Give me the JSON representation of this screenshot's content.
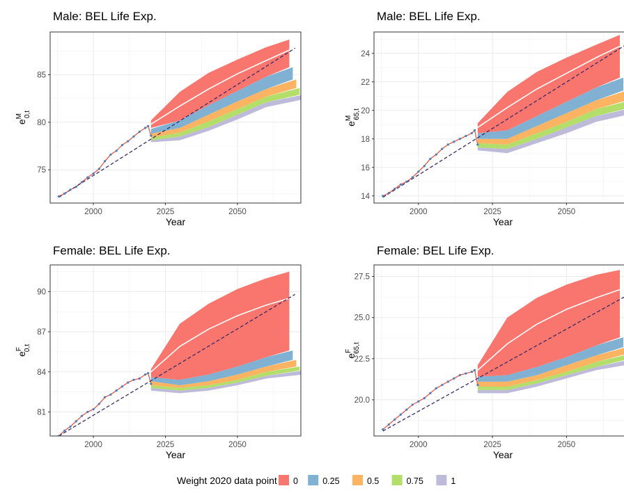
{
  "colors": {
    "w0": "#F8766D",
    "w025": "#80B1D3",
    "w05": "#FDB462",
    "w075": "#B3DE69",
    "w1": "#BEBADA",
    "observed_dots": "#4A7FB5",
    "observed_line": "#E8564B",
    "dashed": "#3B2A66",
    "median": "#FFFFFF"
  },
  "legend": {
    "title": "Weight 2020 data point",
    "items": [
      {
        "label": "0",
        "color_key": "w0"
      },
      {
        "label": "0.25",
        "color_key": "w025"
      },
      {
        "label": "0.5",
        "color_key": "w05"
      },
      {
        "label": "0.75",
        "color_key": "w075"
      },
      {
        "label": "1",
        "color_key": "w1"
      }
    ]
  },
  "chart_data": [
    {
      "type": "area",
      "title": "Male: BEL Life Exp.",
      "xlabel": "Year",
      "ylabel_base": "e",
      "ylabel_sup": "M",
      "ylabel_sub": "0,t",
      "xlim": [
        1985,
        2072
      ],
      "ylim": [
        71.5,
        89.5
      ],
      "xticks": [
        2000,
        2025,
        2050
      ],
      "yticks": [
        75,
        80,
        85
      ],
      "observed": {
        "x": [
          1988,
          1990,
          1992,
          1994,
          1996,
          1998,
          2000,
          2002,
          2004,
          2006,
          2008,
          2010,
          2012,
          2014,
          2016,
          2018,
          2019,
          2020
        ],
        "y": [
          72.2,
          72.5,
          72.9,
          73.2,
          73.7,
          74.2,
          74.6,
          75.1,
          75.9,
          76.6,
          77.0,
          77.6,
          78.0,
          78.5,
          79.0,
          79.4,
          79.6,
          78.6
        ]
      },
      "dashed": {
        "x": [
          1988,
          2070
        ],
        "y": [
          72.1,
          87.8
        ]
      },
      "median": {
        "x": [
          2020,
          2030,
          2040,
          2050,
          2060,
          2068
        ],
        "y": [
          79.8,
          81.7,
          83.5,
          85.1,
          86.5,
          87.6
        ]
      },
      "fan_years": [
        2020,
        2030,
        2040,
        2050,
        2060,
        2068
      ],
      "fans": [
        {
          "weight": "0",
          "upper": [
            80.2,
            83.2,
            85.2,
            86.6,
            87.9,
            88.7
          ],
          "lower": [
            79.4,
            80.2,
            81.8,
            83.3,
            84.8,
            85.8
          ]
        },
        {
          "weight": "0.25",
          "upper": [
            79.3,
            80.2,
            81.8,
            83.3,
            84.8,
            85.8
          ],
          "lower": [
            78.8,
            79.4,
            80.8,
            82.2,
            83.5,
            84.5
          ]
        },
        {
          "weight": "0.5",
          "upper": [
            78.8,
            79.4,
            80.8,
            82.2,
            83.5,
            84.5
          ],
          "lower": [
            78.4,
            78.9,
            80.1,
            81.4,
            82.7,
            83.6
          ]
        },
        {
          "weight": "0.75",
          "upper": [
            78.4,
            78.9,
            80.1,
            81.4,
            82.7,
            83.6
          ],
          "lower": [
            78.1,
            78.5,
            79.5,
            80.8,
            82.1,
            82.9
          ]
        },
        {
          "weight": "1",
          "upper": [
            78.1,
            78.5,
            79.5,
            80.8,
            82.1,
            82.9
          ],
          "lower": [
            77.9,
            78.1,
            79.1,
            80.3,
            81.6,
            82.4
          ]
        }
      ]
    },
    {
      "type": "area",
      "title": "Male: BEL Life Exp.",
      "xlabel": "Year",
      "ylabel_base": "e",
      "ylabel_sup": "M",
      "ylabel_sub": "65,t",
      "xlim": [
        1985,
        2072
      ],
      "ylim": [
        13.5,
        25.5
      ],
      "xticks": [
        2000,
        2025,
        2050
      ],
      "yticks": [
        14,
        16,
        18,
        20,
        22,
        24
      ],
      "observed": {
        "x": [
          1988,
          1990,
          1992,
          1994,
          1996,
          1998,
          2000,
          2002,
          2004,
          2006,
          2008,
          2010,
          2012,
          2014,
          2016,
          2018,
          2019,
          2020
        ],
        "y": [
          14.0,
          14.2,
          14.5,
          14.8,
          15.0,
          15.3,
          15.7,
          16.1,
          16.6,
          16.9,
          17.3,
          17.6,
          17.8,
          18.0,
          18.2,
          18.4,
          18.6,
          17.6
        ]
      },
      "dashed": {
        "x": [
          1988,
          2070
        ],
        "y": [
          13.9,
          24.6
        ]
      },
      "median": {
        "x": [
          2020,
          2030,
          2040,
          2050,
          2060,
          2068
        ],
        "y": [
          18.8,
          20.2,
          21.5,
          22.6,
          23.7,
          24.5
        ]
      },
      "fan_years": [
        2020,
        2030,
        2040,
        2050,
        2060,
        2068
      ],
      "fans": [
        {
          "weight": "0",
          "upper": [
            19.1,
            21.3,
            22.7,
            23.7,
            24.6,
            25.3
          ],
          "lower": [
            18.4,
            18.6,
            19.6,
            20.6,
            21.6,
            22.3
          ]
        },
        {
          "weight": "0.25",
          "upper": [
            18.4,
            18.6,
            19.6,
            20.6,
            21.6,
            22.3
          ],
          "lower": [
            18.0,
            18.0,
            18.9,
            19.8,
            20.7,
            21.4
          ]
        },
        {
          "weight": "0.5",
          "upper": [
            18.0,
            18.0,
            18.9,
            19.8,
            20.7,
            21.4
          ],
          "lower": [
            17.7,
            17.6,
            18.4,
            19.2,
            20.1,
            20.7
          ]
        },
        {
          "weight": "0.75",
          "upper": [
            17.7,
            17.6,
            18.4,
            19.2,
            20.1,
            20.7
          ],
          "lower": [
            17.4,
            17.3,
            18.0,
            18.8,
            19.6,
            20.2
          ]
        },
        {
          "weight": "1",
          "upper": [
            17.4,
            17.3,
            18.0,
            18.8,
            19.6,
            20.2
          ],
          "lower": [
            17.2,
            17.0,
            17.7,
            18.4,
            19.2,
            19.8
          ]
        }
      ]
    },
    {
      "type": "area",
      "title": "Female: BEL Life Exp.",
      "xlabel": "Year",
      "ylabel_base": "e",
      "ylabel_sup": "F",
      "ylabel_sub": "0,t",
      "xlim": [
        1985,
        2072
      ],
      "ylim": [
        79.2,
        92.0
      ],
      "xticks": [
        2000,
        2025,
        2050
      ],
      "yticks": [
        81,
        84,
        87,
        90
      ],
      "observed": {
        "x": [
          1988,
          1990,
          1992,
          1994,
          1996,
          1998,
          2000,
          2002,
          2004,
          2006,
          2008,
          2010,
          2012,
          2014,
          2016,
          2018,
          2019,
          2020
        ],
        "y": [
          79.2,
          79.6,
          79.9,
          80.3,
          80.7,
          81.0,
          81.2,
          81.6,
          82.1,
          82.3,
          82.6,
          82.9,
          83.2,
          83.4,
          83.5,
          83.8,
          83.9,
          83.1
        ]
      },
      "dashed": {
        "x": [
          1988,
          2070
        ],
        "y": [
          79.2,
          89.8
        ]
      },
      "median": {
        "x": [
          2020,
          2030,
          2040,
          2050,
          2060,
          2068
        ],
        "y": [
          84.0,
          85.9,
          87.2,
          88.2,
          89.0,
          89.5
        ]
      },
      "fan_years": [
        2020,
        2030,
        2040,
        2050,
        2060,
        2068
      ],
      "fans": [
        {
          "weight": "0",
          "upper": [
            84.2,
            87.6,
            89.1,
            90.2,
            91.0,
            91.5
          ],
          "lower": [
            83.6,
            83.4,
            83.8,
            84.4,
            85.1,
            85.6
          ]
        },
        {
          "weight": "0.25",
          "upper": [
            83.6,
            83.4,
            83.8,
            84.4,
            85.1,
            85.6
          ],
          "lower": [
            83.3,
            83.0,
            83.3,
            83.8,
            84.4,
            84.9
          ]
        },
        {
          "weight": "0.5",
          "upper": [
            83.3,
            83.0,
            83.3,
            83.8,
            84.4,
            84.9
          ],
          "lower": [
            83.0,
            82.8,
            83.0,
            83.4,
            84.0,
            84.4
          ]
        },
        {
          "weight": "0.75",
          "upper": [
            83.0,
            82.8,
            83.0,
            83.4,
            84.0,
            84.4
          ],
          "lower": [
            82.8,
            82.6,
            82.8,
            83.2,
            83.7,
            84.1
          ]
        },
        {
          "weight": "1",
          "upper": [
            82.8,
            82.6,
            82.8,
            83.2,
            83.7,
            84.1
          ],
          "lower": [
            82.6,
            82.4,
            82.6,
            83.0,
            83.5,
            83.8
          ]
        }
      ]
    },
    {
      "type": "area",
      "title": "Female: BEL Life Exp.",
      "xlabel": "Year",
      "ylabel_base": "e",
      "ylabel_sup": "F",
      "ylabel_sub": "65,t",
      "xlim": [
        1985,
        2072
      ],
      "ylim": [
        17.8,
        28.2
      ],
      "xticks": [
        2000,
        2025,
        2050
      ],
      "yticks": [
        20.0,
        22.5,
        25.0,
        27.5
      ],
      "ytick_labels": [
        "20.0",
        "22.5",
        "25.0",
        "27.5"
      ],
      "observed": {
        "x": [
          1988,
          1990,
          1992,
          1994,
          1996,
          1998,
          2000,
          2002,
          2004,
          2006,
          2008,
          2010,
          2012,
          2014,
          2016,
          2018,
          2019,
          2020
        ],
        "y": [
          18.2,
          18.5,
          18.8,
          19.1,
          19.4,
          19.7,
          19.9,
          20.1,
          20.4,
          20.7,
          20.9,
          21.1,
          21.3,
          21.5,
          21.6,
          21.7,
          21.8,
          20.9
        ]
      },
      "dashed": {
        "x": [
          1988,
          2070
        ],
        "y": [
          18.1,
          26.3
        ]
      },
      "median": {
        "x": [
          2020,
          2030,
          2040,
          2050,
          2060,
          2068
        ],
        "y": [
          21.8,
          23.4,
          24.6,
          25.5,
          26.2,
          26.7
        ]
      },
      "fan_years": [
        2020,
        2030,
        2040,
        2050,
        2060,
        2068
      ],
      "fans": [
        {
          "weight": "0",
          "upper": [
            22.1,
            25.0,
            26.2,
            27.0,
            27.6,
            27.9
          ],
          "lower": [
            21.4,
            21.5,
            22.0,
            22.6,
            23.3,
            23.8
          ]
        },
        {
          "weight": "0.25",
          "upper": [
            21.4,
            21.5,
            22.0,
            22.6,
            23.3,
            23.8
          ],
          "lower": [
            21.1,
            21.1,
            21.5,
            22.1,
            22.7,
            23.2
          ]
        },
        {
          "weight": "0.5",
          "upper": [
            21.1,
            21.1,
            21.5,
            22.1,
            22.7,
            23.2
          ],
          "lower": [
            20.8,
            20.8,
            21.2,
            21.7,
            22.3,
            22.8
          ]
        },
        {
          "weight": "0.75",
          "upper": [
            20.8,
            20.8,
            21.2,
            21.7,
            22.3,
            22.8
          ],
          "lower": [
            20.6,
            20.6,
            21.0,
            21.5,
            22.0,
            22.5
          ]
        },
        {
          "weight": "1",
          "upper": [
            20.6,
            20.6,
            21.0,
            21.5,
            22.0,
            22.5
          ],
          "lower": [
            20.4,
            20.4,
            20.8,
            21.3,
            21.8,
            22.2
          ]
        }
      ]
    }
  ]
}
